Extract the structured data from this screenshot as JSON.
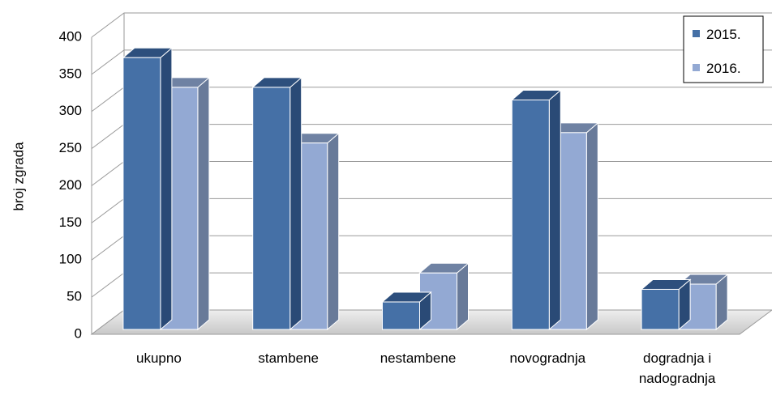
{
  "chart_data": {
    "type": "bar",
    "categories": [
      "ukupno",
      "stambene",
      "nestambene",
      "novogradnja",
      "dogradnja i nadogradnja"
    ],
    "category_lines": [
      [
        "ukupno"
      ],
      [
        "stambene"
      ],
      [
        "nestambene"
      ],
      [
        "novogradnja"
      ],
      [
        "dogradnja i",
        "nadogradnja"
      ]
    ],
    "series": [
      {
        "name": "2015.",
        "values": [
          366,
          326,
          37,
          309,
          54
        ]
      },
      {
        "name": "2016.",
        "values": [
          326,
          251,
          76,
          265,
          61
        ]
      }
    ],
    "title": "",
    "xlabel": "",
    "ylabel": "broj zgrada",
    "ylim": [
      0,
      400
    ],
    "yticks": [
      0,
      50,
      100,
      150,
      200,
      250,
      300,
      350,
      400
    ],
    "grid": true,
    "three_d": true,
    "legend_position": "top-right",
    "colors": {
      "s2015_front": "#4570A6",
      "s2015_top": "#2D4F7D",
      "s2015_side": "#2A4A76",
      "s2016_front": "#93A9D3",
      "s2016_top": "#6F82A3",
      "s2016_side": "#687A99",
      "floor": "#DCDCDC",
      "grid": "#9A9A9A"
    }
  }
}
